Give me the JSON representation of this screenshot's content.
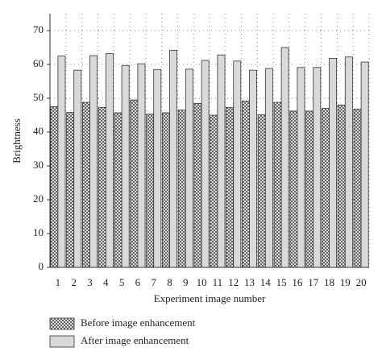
{
  "chart_data": {
    "type": "bar",
    "x_label": "Experiment image number",
    "y_label": "Brightness",
    "categories": [
      "1",
      "2",
      "3",
      "4",
      "5",
      "6",
      "7",
      "8",
      "9",
      "10",
      "11",
      "12",
      "13",
      "14",
      "15",
      "16",
      "17",
      "18",
      "19",
      "20"
    ],
    "series": [
      {
        "name": "Before image enhancement",
        "color": "#555555",
        "pattern": "crosshatch",
        "values": [
          47.5,
          45.8,
          48.8,
          47.3,
          45.7,
          49.5,
          45.3,
          45.7,
          46.5,
          48.5,
          45.0,
          47.3,
          49.2,
          45.1,
          48.8,
          46.2,
          46.2,
          47.0,
          48.0,
          46.8
        ]
      },
      {
        "name": "After image enhancement",
        "color": "#d9d9d9",
        "values": [
          62.5,
          58.3,
          62.6,
          63.2,
          59.7,
          60.2,
          58.5,
          64.2,
          58.6,
          61.2,
          62.8,
          61.0,
          58.3,
          58.8,
          65.0,
          59.1,
          59.1,
          61.8,
          62.2,
          60.7
        ]
      }
    ],
    "ylim": [
      0,
      75
    ],
    "yticks": [
      0,
      10,
      20,
      30,
      40,
      50,
      60,
      70
    ],
    "grid": true,
    "legend": "bottom-left"
  }
}
